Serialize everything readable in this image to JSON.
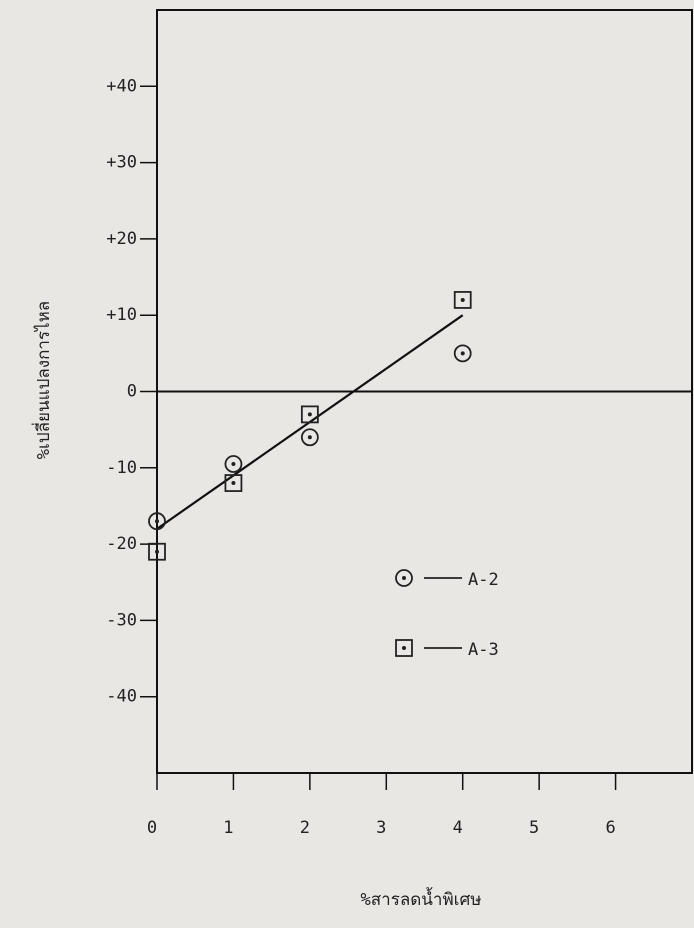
{
  "chart_data": {
    "type": "scatter",
    "x_label": "%สารลดน้ำพิเศษ",
    "y_label": "%เปลี่ยนแปลงการไหล",
    "xlim": [
      0,
      7
    ],
    "ylim": [
      -50,
      50
    ],
    "xticks": [
      0,
      1,
      2,
      3,
      4,
      5,
      6
    ],
    "yticks": [
      {
        "value": 40,
        "label": "+40"
      },
      {
        "value": 30,
        "label": "+30"
      },
      {
        "value": 20,
        "label": "+20"
      },
      {
        "value": 10,
        "label": "+10"
      },
      0,
      -10,
      -20,
      -30,
      -40
    ],
    "reference_line": 0,
    "legend": "center-right",
    "series": [
      {
        "name": "A-2",
        "marker": "circle",
        "color": "#222",
        "x": [
          0,
          1,
          2,
          4
        ],
        "values": [
          -17,
          -9.5,
          -6,
          5
        ]
      },
      {
        "name": "A-3",
        "marker": "square",
        "color": "#222",
        "x": [
          0,
          1,
          2,
          4
        ],
        "values": [
          -21,
          -12,
          -3,
          12
        ]
      }
    ],
    "fit_line": {
      "x": [
        0,
        4
      ],
      "values": [
        -18,
        10
      ],
      "color": "#111"
    }
  }
}
